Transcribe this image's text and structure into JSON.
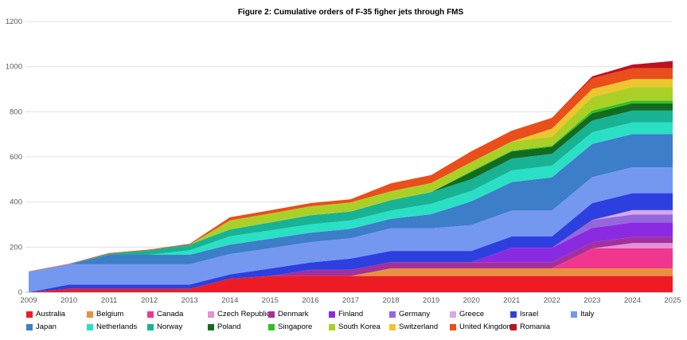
{
  "chart_data": {
    "type": "area",
    "stacked": true,
    "title": "Figure 2: Cumulative orders of F-35 figher jets through FMS",
    "xlabel": "",
    "ylabel": "",
    "x": [
      "2009",
      "2010",
      "2011",
      "2012",
      "2013",
      "2014",
      "2015",
      "2016",
      "2017",
      "2018",
      "2019",
      "2020",
      "2021",
      "2022",
      "2023",
      "2024",
      "2025"
    ],
    "ylim": [
      0,
      1200
    ],
    "y_ticks": [
      0,
      200,
      400,
      600,
      800,
      1000,
      1200
    ],
    "grid": "horizontal",
    "legend_position": "bottom",
    "series": [
      {
        "name": "Australia",
        "color": "#ed1c24",
        "values": [
          0,
          15,
          15,
          15,
          15,
          60,
          72,
          72,
          72,
          72,
          72,
          72,
          72,
          72,
          72,
          72,
          72
        ]
      },
      {
        "name": "Belgium",
        "color": "#e9913f",
        "values": [
          0,
          0,
          0,
          0,
          0,
          0,
          0,
          0,
          0,
          34,
          34,
          34,
          34,
          34,
          34,
          34,
          34
        ]
      },
      {
        "name": "Canada",
        "color": "#f0368f",
        "values": [
          0,
          0,
          0,
          0,
          0,
          0,
          0,
          0,
          0,
          0,
          0,
          0,
          0,
          0,
          88,
          88,
          88
        ]
      },
      {
        "name": "Czech Republic",
        "color": "#e293d6",
        "values": [
          0,
          0,
          0,
          0,
          0,
          0,
          0,
          0,
          0,
          0,
          0,
          0,
          0,
          0,
          0,
          24,
          24
        ]
      },
      {
        "name": "Denmark",
        "color": "#a4309c",
        "values": [
          0,
          0,
          0,
          0,
          0,
          0,
          0,
          27,
          27,
          27,
          27,
          27,
          27,
          27,
          27,
          27,
          27
        ]
      },
      {
        "name": "Finland",
        "color": "#8a2be2",
        "values": [
          0,
          0,
          0,
          0,
          0,
          0,
          0,
          0,
          0,
          0,
          0,
          0,
          64,
          64,
          64,
          64,
          64
        ]
      },
      {
        "name": "Germany",
        "color": "#9468dc",
        "values": [
          0,
          0,
          0,
          0,
          0,
          0,
          0,
          0,
          0,
          0,
          0,
          0,
          0,
          0,
          35,
          35,
          35
        ]
      },
      {
        "name": "Greece",
        "color": "#d6a8e8",
        "values": [
          0,
          0,
          0,
          0,
          0,
          0,
          0,
          0,
          0,
          0,
          0,
          0,
          0,
          0,
          0,
          20,
          20
        ]
      },
      {
        "name": "Israel",
        "color": "#2e3fe0",
        "values": [
          0,
          19,
          19,
          19,
          19,
          19,
          33,
          33,
          50,
          50,
          50,
          50,
          50,
          50,
          75,
          75,
          75
        ]
      },
      {
        "name": "Italy",
        "color": "#7498f0",
        "values": [
          90,
          90,
          90,
          90,
          90,
          90,
          90,
          90,
          90,
          100,
          100,
          115,
          115,
          115,
          115,
          115,
          115
        ]
      },
      {
        "name": "Japan",
        "color": "#3c7ec8",
        "values": [
          0,
          0,
          42,
          42,
          42,
          42,
          42,
          42,
          42,
          42,
          63,
          105,
          126,
          147,
          147,
          147,
          147
        ]
      },
      {
        "name": "Netherlands",
        "color": "#29e0c5",
        "values": [
          0,
          0,
          0,
          0,
          20,
          37,
          37,
          37,
          37,
          37,
          46,
          46,
          52,
          52,
          52,
          52,
          52
        ]
      },
      {
        "name": "Norway",
        "color": "#18b394",
        "values": [
          0,
          0,
          5,
          20,
          25,
          30,
          35,
          40,
          40,
          46,
          52,
          52,
          52,
          52,
          52,
          52,
          52
        ]
      },
      {
        "name": "Poland",
        "color": "#136b21",
        "values": [
          0,
          0,
          0,
          0,
          0,
          0,
          0,
          0,
          0,
          0,
          0,
          32,
          32,
          32,
          32,
          32,
          32
        ]
      },
      {
        "name": "Singapore",
        "color": "#2fc21e",
        "values": [
          0,
          0,
          0,
          0,
          0,
          0,
          0,
          0,
          0,
          0,
          0,
          4,
          4,
          4,
          12,
          12,
          12
        ]
      },
      {
        "name": "South Korea",
        "color": "#aad028",
        "values": [
          0,
          0,
          0,
          0,
          0,
          40,
          40,
          40,
          40,
          40,
          40,
          40,
          40,
          40,
          60,
          60,
          60
        ]
      },
      {
        "name": "Switzerland",
        "color": "#eec52e",
        "values": [
          0,
          0,
          0,
          0,
          0,
          0,
          0,
          0,
          0,
          0,
          0,
          0,
          0,
          36,
          36,
          36,
          36
        ]
      },
      {
        "name": "United Kingdom",
        "color": "#e94e1b",
        "values": [
          2,
          2,
          3,
          3,
          4,
          14,
          14,
          14,
          14,
          35,
          35,
          48,
          48,
          48,
          48,
          48,
          48
        ]
      },
      {
        "name": "Romania",
        "color": "#bd121f",
        "values": [
          0,
          0,
          0,
          0,
          0,
          0,
          0,
          0,
          0,
          0,
          0,
          0,
          0,
          0,
          8,
          16,
          32
        ]
      }
    ]
  },
  "axis_style": {
    "tick_label_color": "#595959",
    "gridline_color": "#e0e0e0",
    "axis_line_color": "#b7b7b7"
  }
}
